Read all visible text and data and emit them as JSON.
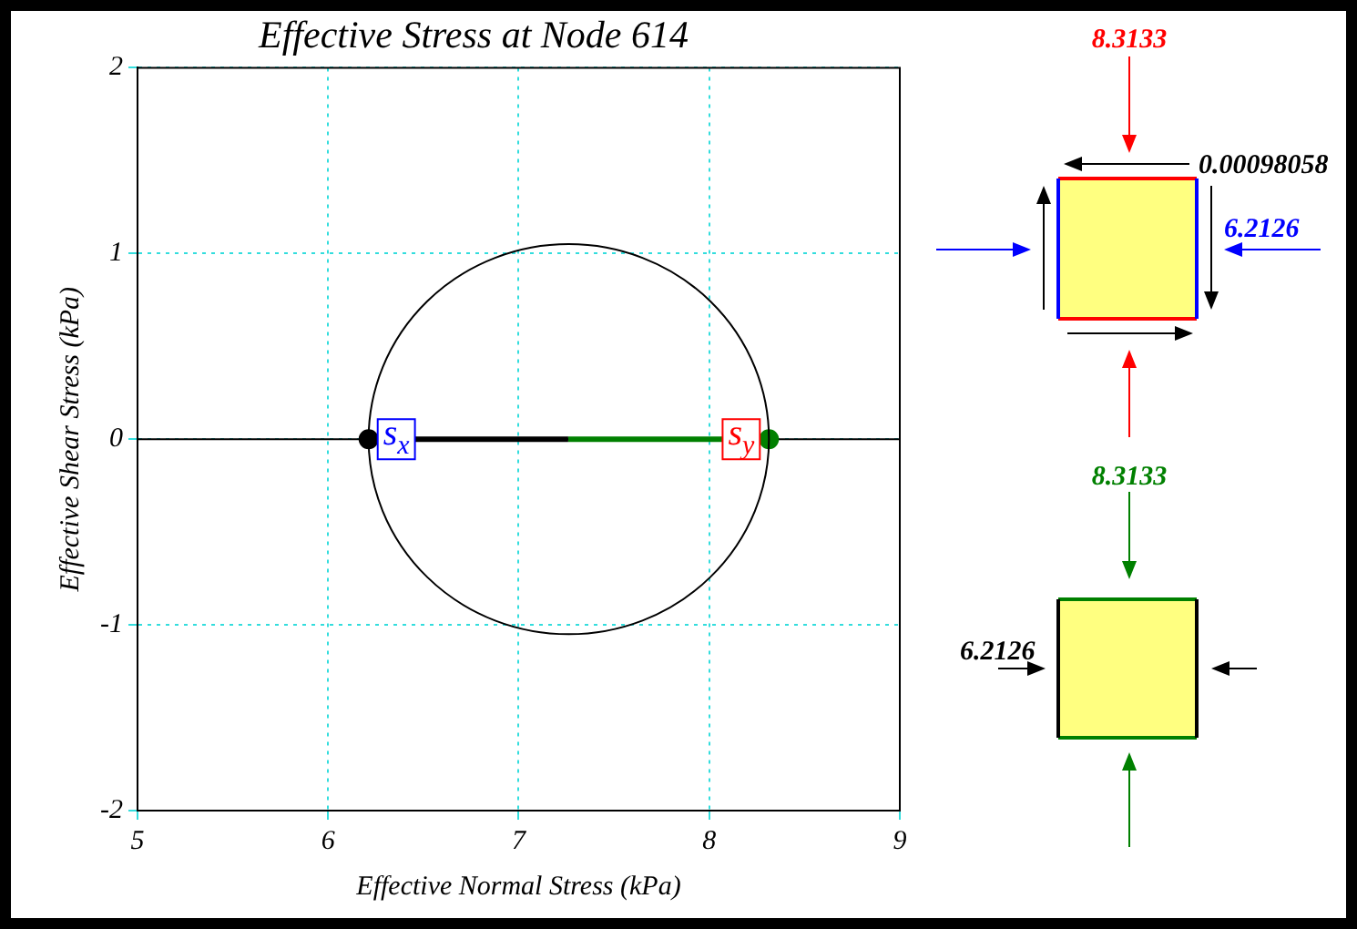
{
  "chart_data": {
    "type": "line",
    "title": "Effective Stress at Node 614",
    "xlabel": "Effective Normal Stress (kPa)",
    "ylabel": "Effective Shear Stress (kPa)",
    "xlim": [
      5,
      9
    ],
    "ylim": [
      -2,
      2
    ],
    "xticks": [
      5,
      6,
      7,
      8,
      9
    ],
    "yticks": [
      -2,
      -1,
      0,
      1,
      2
    ],
    "grid": true,
    "legend": false,
    "ref_lines": [
      {
        "axis": "y",
        "value": 0,
        "color": "#000000"
      }
    ],
    "series": [
      {
        "type": "line",
        "color": "#000000",
        "x": [
          6.2126,
          7.26
        ],
        "values": [
          0,
          0
        ]
      },
      {
        "type": "line",
        "color": "#008000",
        "x": [
          7.26,
          8.3133
        ],
        "values": [
          0,
          0
        ]
      },
      {
        "type": "scatter",
        "color": "#000000",
        "marker": "circle",
        "x": [
          6.2126
        ],
        "values": [
          0
        ]
      },
      {
        "type": "scatter",
        "color": "#008000",
        "marker": "circle",
        "x": [
          8.3133
        ],
        "values": [
          0
        ]
      }
    ],
    "annotations": [
      {
        "text": "s$_{x}$",
        "x": 6.2126,
        "y": 0
      },
      {
        "text": "s$_{y}$",
        "x": 8.3133,
        "y": 0
      },
      "8.3133",
      "0.00098058",
      "6.2126",
      "8.3133",
      "6.2126"
    ]
  }
}
